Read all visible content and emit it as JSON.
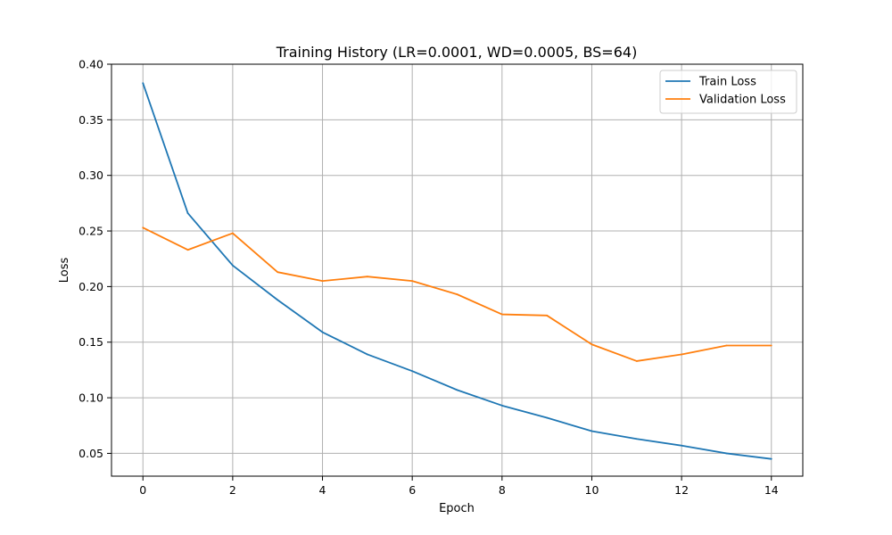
{
  "chart_data": {
    "type": "line",
    "title": "Training History (LR=0.0001, WD=0.0005, BS=64)",
    "xlabel": "Epoch",
    "ylabel": "Loss",
    "x": [
      0,
      1,
      2,
      3,
      4,
      5,
      6,
      7,
      8,
      9,
      10,
      11,
      12,
      13,
      14
    ],
    "xlim": [
      -0.7,
      14.7
    ],
    "ylim": [
      0.0295,
      0.4
    ],
    "xticks": [
      0,
      2,
      4,
      6,
      8,
      10,
      12,
      14
    ],
    "xtick_labels": [
      "0",
      "2",
      "4",
      "6",
      "8",
      "10",
      "12",
      "14"
    ],
    "yticks": [
      0.05,
      0.1,
      0.15,
      0.2,
      0.25,
      0.3,
      0.35,
      0.4
    ],
    "ytick_labels": [
      "0.05",
      "0.10",
      "0.15",
      "0.20",
      "0.25",
      "0.30",
      "0.35",
      "0.40"
    ],
    "grid": true,
    "legend_position": "top-right",
    "series": [
      {
        "name": "Train Loss",
        "color": "#1f77b4",
        "values": [
          0.383,
          0.266,
          0.219,
          0.188,
          0.159,
          0.139,
          0.124,
          0.107,
          0.093,
          0.082,
          0.07,
          0.063,
          0.057,
          0.05,
          0.045
        ]
      },
      {
        "name": "Validation Loss",
        "color": "#ff7f0e",
        "values": [
          0.253,
          0.233,
          0.248,
          0.213,
          0.205,
          0.209,
          0.205,
          0.193,
          0.175,
          0.174,
          0.148,
          0.133,
          0.139,
          0.147,
          0.147
        ]
      }
    ]
  }
}
